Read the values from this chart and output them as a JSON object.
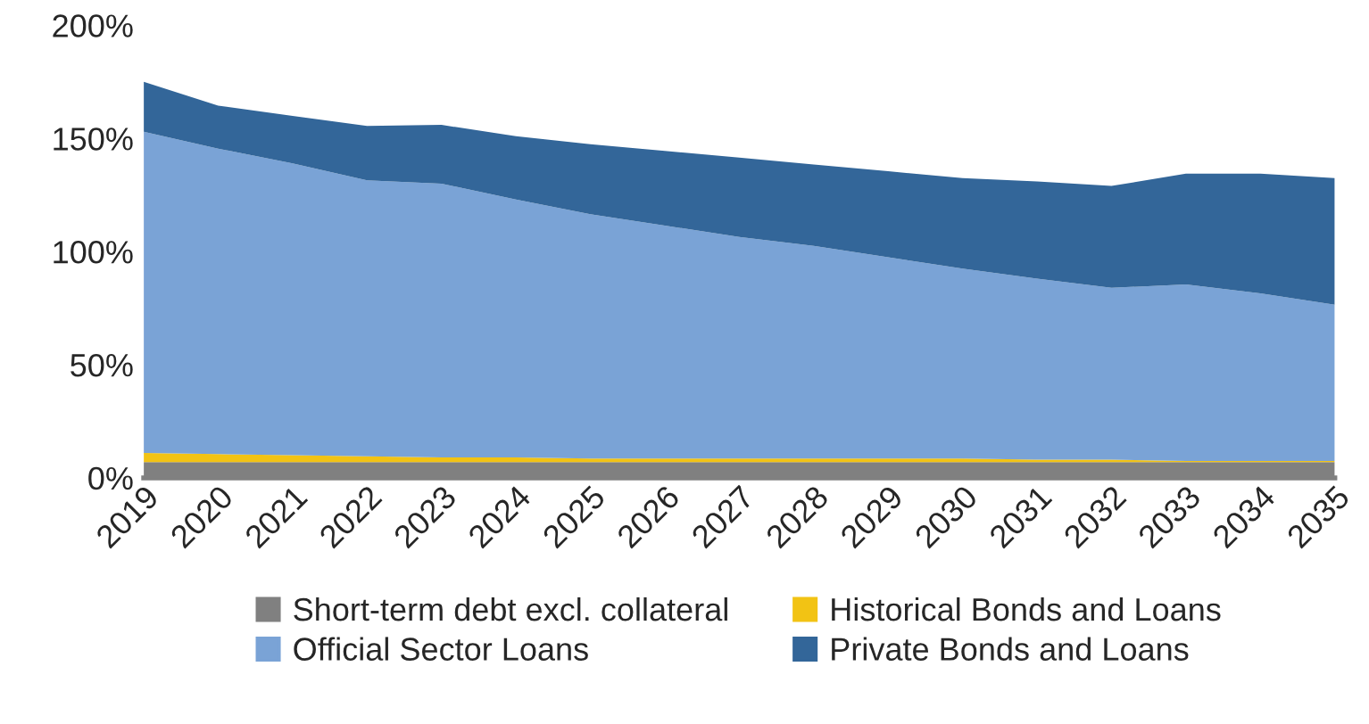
{
  "chart_data": {
    "type": "area",
    "stacked": true,
    "categories": [
      "2019",
      "2020",
      "2021",
      "2022",
      "2023",
      "2024",
      "2025",
      "2026",
      "2027",
      "2028",
      "2029",
      "2030",
      "2031",
      "2032",
      "2033",
      "2034",
      "2035"
    ],
    "series": [
      {
        "name": "Short-term debt excl. collateral",
        "color": "#808080",
        "values": [
          7,
          7,
          7,
          7,
          7,
          7,
          7,
          7,
          7,
          7,
          7,
          7,
          7,
          7,
          7,
          7,
          7
        ]
      },
      {
        "name": "Historical Bonds and Loans",
        "color": "#f2c314",
        "values": [
          4,
          3.5,
          3,
          2.5,
          2,
          2,
          1.5,
          1.5,
          1.5,
          1.5,
          1.5,
          1.5,
          1,
          1,
          0.5,
          0.5,
          0.5
        ]
      },
      {
        "name": "Official Sector Loans",
        "color": "#7aa3d6",
        "values": [
          142,
          135,
          129,
          122,
          121,
          114,
          108,
          103,
          98,
          94,
          89,
          84,
          80,
          76,
          78,
          74,
          69
        ]
      },
      {
        "name": "Private Bonds and Loans",
        "color": "#336699",
        "values": [
          22,
          19,
          21,
          24,
          26,
          28,
          31,
          33,
          35,
          36,
          38,
          40,
          43,
          45,
          49,
          53,
          56
        ]
      }
    ],
    "ylim": [
      0,
      200
    ],
    "yticks": [
      {
        "value": 0,
        "label": "0%"
      },
      {
        "value": 50,
        "label": "50%"
      },
      {
        "value": 100,
        "label": "100%"
      },
      {
        "value": 150,
        "label": "150%"
      },
      {
        "value": 200,
        "label": "200%"
      }
    ],
    "grid": false,
    "legend": "bottom"
  }
}
